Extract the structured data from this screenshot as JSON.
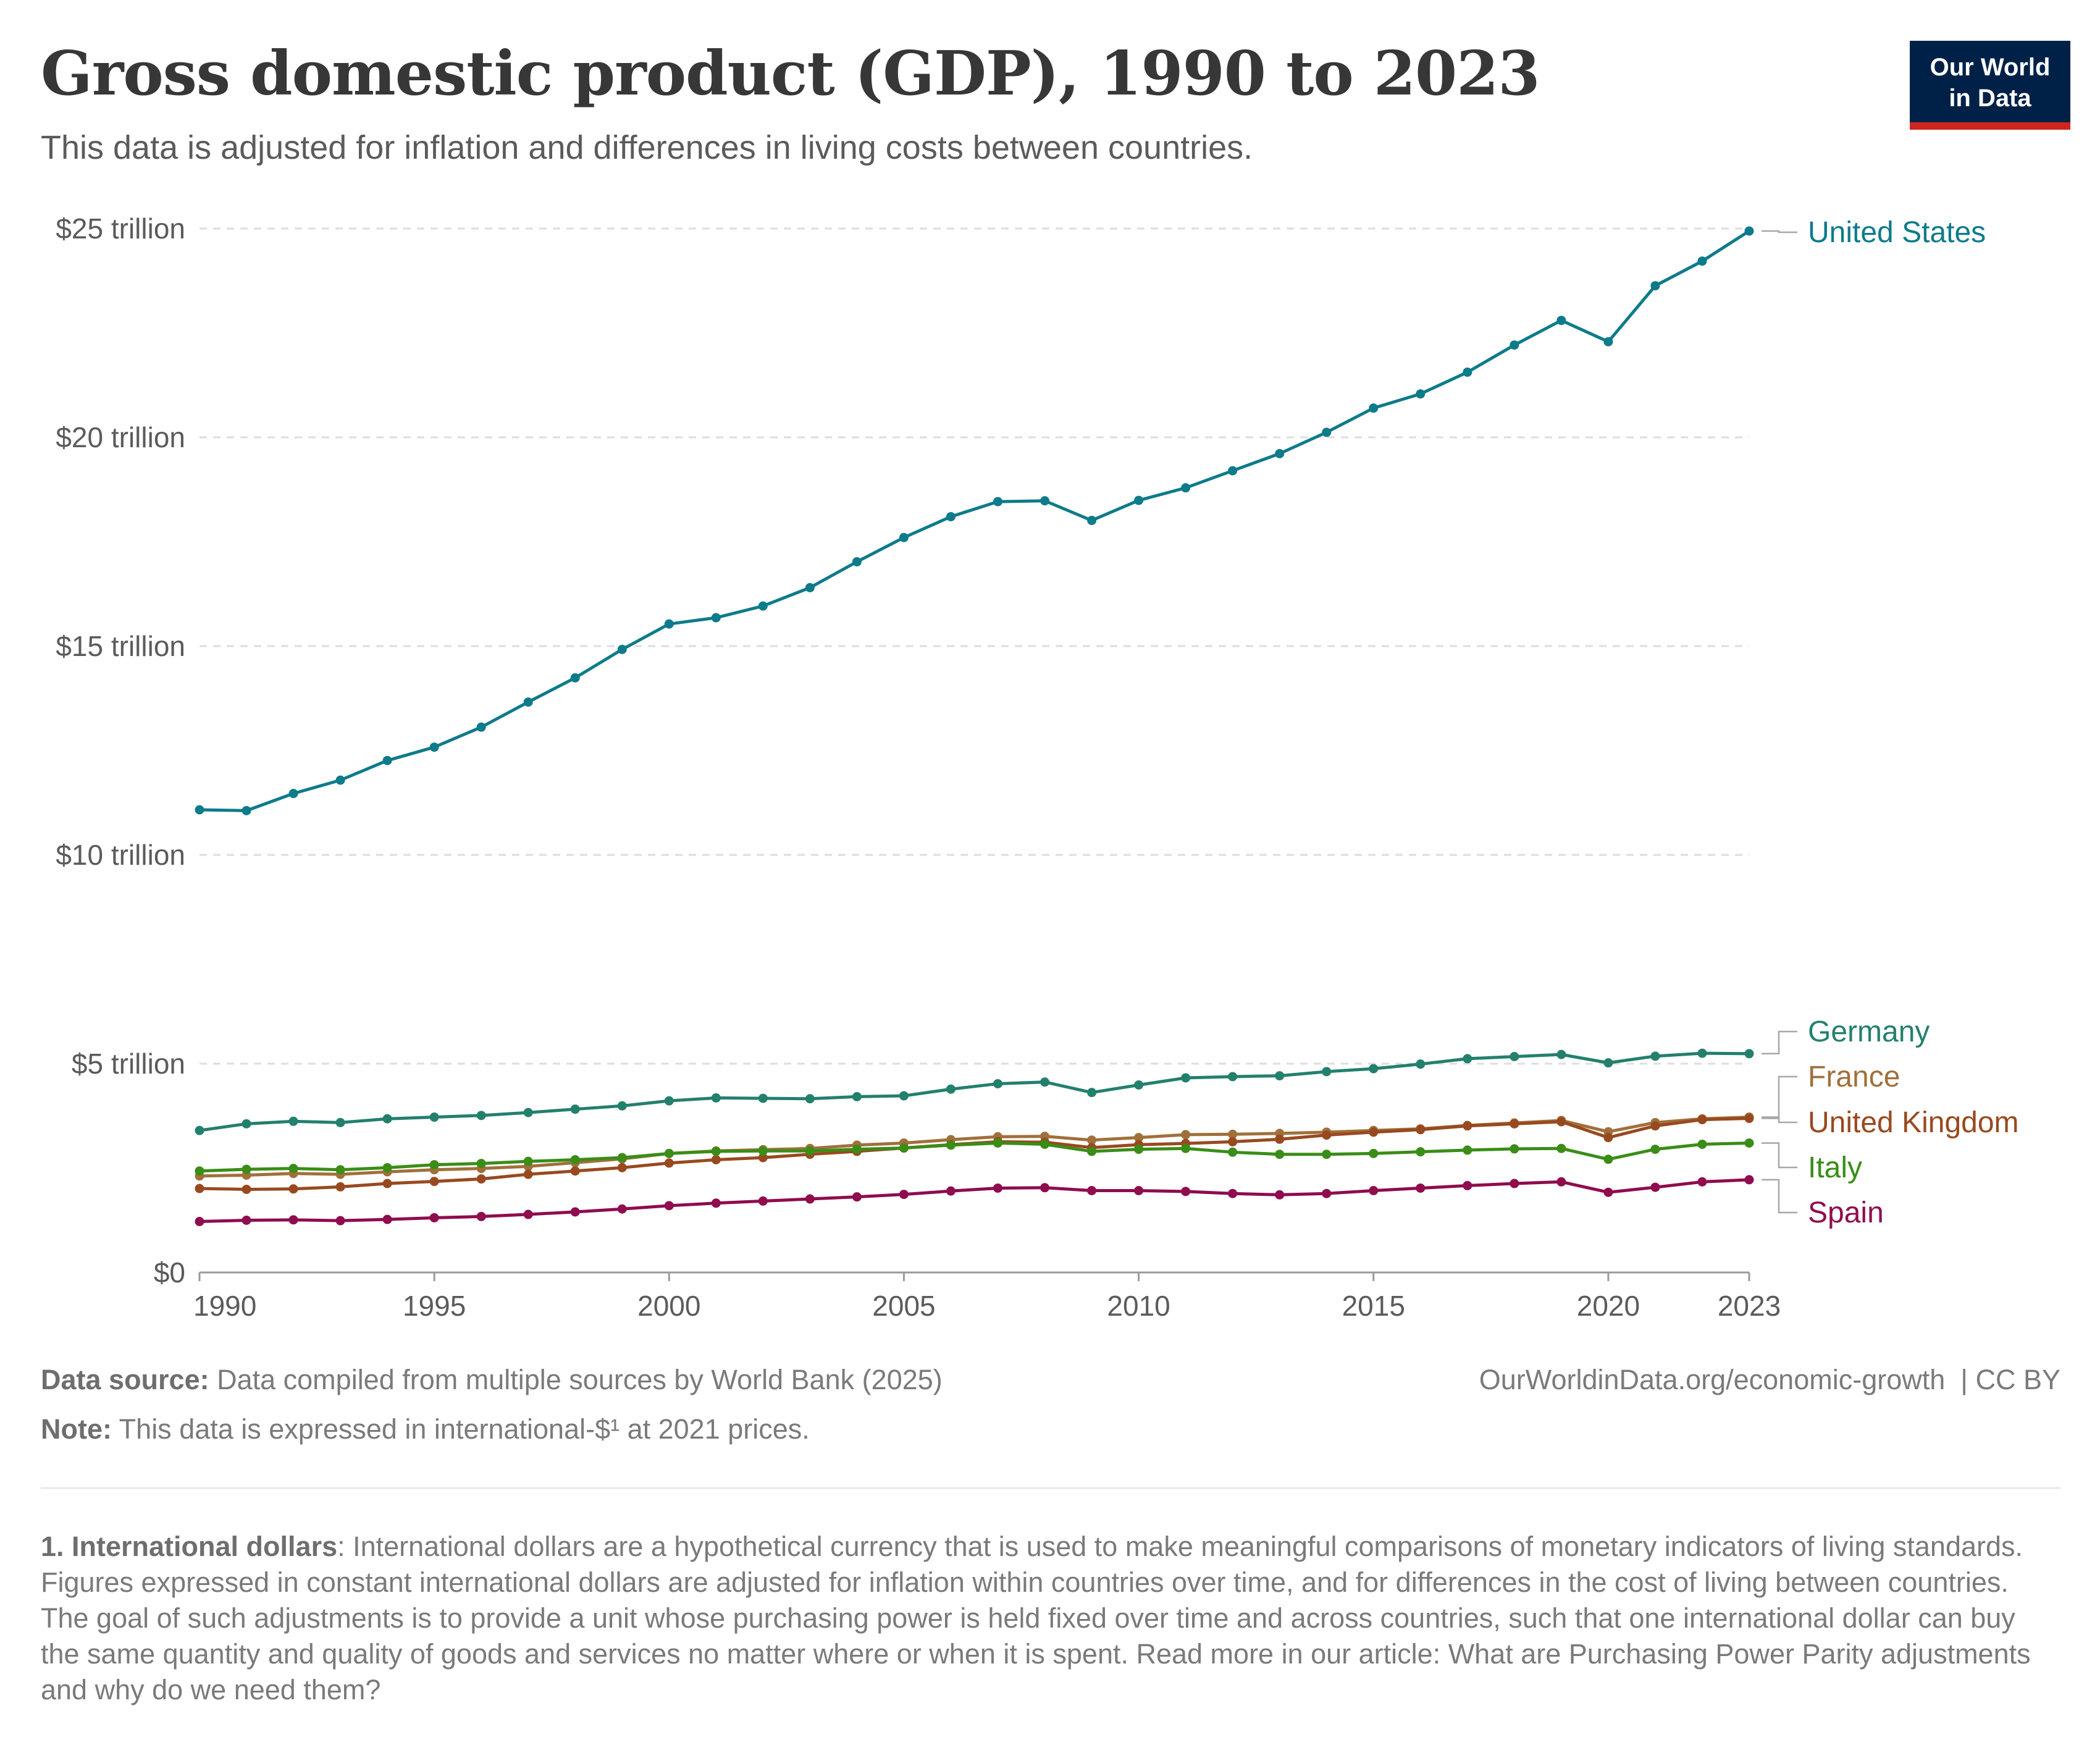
{
  "header": {
    "title": "Gross domestic product (GDP), 1990 to 2023",
    "subtitle": "This data is adjusted for inflation and differences in living costs between countries.",
    "logo_line1": "Our World",
    "logo_line2": "in Data"
  },
  "footer": {
    "source_label": "Data source:",
    "source_text": " Data compiled from multiple sources by World Bank (2025)",
    "url": "OurWorldinData.org/economic-growth",
    "license": "| CC BY",
    "note_label": "Note:",
    "note_text": " This data is expressed in international-$¹ at 2021 prices.",
    "footnote_label": "1. International dollars",
    "footnote_text": ": International dollars are a hypothetical currency that is used to make meaningful comparisons of monetary indicators of living standards. Figures expressed in constant international dollars are adjusted for inflation within countries over time, and for differences in the cost of living between countries. The goal of such adjustments is to provide a unit whose purchasing power is held fixed over time and across countries, such that one international dollar can buy the same quantity and quality of goods and services no matter where or when it is spent. Read more in our article: What are Purchasing Power Parity adjustments and why do we need them?"
  },
  "colors": {
    "united_states": "#0d7b8a",
    "germany": "#23806d",
    "france": "#a0703b",
    "united_kingdom": "#99491f",
    "italy": "#3a8d17",
    "spain": "#8f0c4e",
    "grid": "#dddddd",
    "axis": "#9a9a9a",
    "tick_label": "#5b5b5b"
  },
  "chart_data": {
    "type": "line",
    "title": "Gross domestic product (GDP), 1990 to 2023",
    "xlabel": "",
    "ylabel": "",
    "xlim": [
      1990,
      2023
    ],
    "ylim": [
      0,
      25
    ],
    "y_unit": "trillion international-$ (2021 prices)",
    "grid": "horizontal dashed",
    "legend": "right-end labels",
    "x_ticks": [
      {
        "value": 1990,
        "label": "1990"
      },
      {
        "value": 1995,
        "label": "1995"
      },
      {
        "value": 2000,
        "label": "2000"
      },
      {
        "value": 2005,
        "label": "2005"
      },
      {
        "value": 2010,
        "label": "2010"
      },
      {
        "value": 2015,
        "label": "2015"
      },
      {
        "value": 2020,
        "label": "2020"
      },
      {
        "value": 2023,
        "label": "2023"
      }
    ],
    "y_ticks": [
      {
        "value": 0,
        "label": "$0"
      },
      {
        "value": 5,
        "label": "$5 trillion"
      },
      {
        "value": 10,
        "label": "$10 trillion"
      },
      {
        "value": 15,
        "label": "$15 trillion"
      },
      {
        "value": 20,
        "label": "$20 trillion"
      },
      {
        "value": 25,
        "label": "$25 trillion"
      }
    ],
    "x": [
      1990,
      1991,
      1992,
      1993,
      1994,
      1995,
      1996,
      1997,
      1998,
      1999,
      2000,
      2001,
      2002,
      2003,
      2004,
      2005,
      2006,
      2007,
      2008,
      2009,
      2010,
      2011,
      2012,
      2013,
      2014,
      2015,
      2016,
      2017,
      2018,
      2019,
      2020,
      2021,
      2022,
      2023
    ],
    "series": [
      {
        "name": "United States",
        "color_key": "united_states",
        "values": [
          11.08,
          11.06,
          11.47,
          11.79,
          12.26,
          12.58,
          13.06,
          13.66,
          14.24,
          14.92,
          15.53,
          15.68,
          15.96,
          16.4,
          17.02,
          17.6,
          18.1,
          18.46,
          18.48,
          18.01,
          18.49,
          18.79,
          19.2,
          19.61,
          20.12,
          20.7,
          21.04,
          21.56,
          22.21,
          22.8,
          22.29,
          23.63,
          24.22,
          24.94
        ]
      },
      {
        "name": "Germany",
        "color_key": "germany",
        "values": [
          3.4,
          3.56,
          3.62,
          3.59,
          3.68,
          3.72,
          3.76,
          3.83,
          3.91,
          3.99,
          4.11,
          4.18,
          4.17,
          4.16,
          4.21,
          4.23,
          4.39,
          4.52,
          4.56,
          4.31,
          4.49,
          4.66,
          4.69,
          4.71,
          4.81,
          4.88,
          4.99,
          5.12,
          5.17,
          5.22,
          5.02,
          5.18,
          5.25,
          5.24
        ]
      },
      {
        "name": "France",
        "color_key": "france",
        "values": [
          2.31,
          2.33,
          2.37,
          2.35,
          2.41,
          2.46,
          2.49,
          2.54,
          2.63,
          2.72,
          2.85,
          2.91,
          2.94,
          2.97,
          3.05,
          3.1,
          3.18,
          3.25,
          3.26,
          3.17,
          3.23,
          3.3,
          3.31,
          3.33,
          3.36,
          3.4,
          3.44,
          3.52,
          3.58,
          3.64,
          3.37,
          3.59,
          3.68,
          3.72
        ]
      },
      {
        "name": "United Kingdom",
        "color_key": "united_kingdom",
        "values": [
          2.01,
          1.99,
          2.0,
          2.05,
          2.13,
          2.18,
          2.24,
          2.35,
          2.43,
          2.51,
          2.62,
          2.7,
          2.75,
          2.83,
          2.9,
          2.98,
          3.06,
          3.13,
          3.12,
          2.99,
          3.06,
          3.09,
          3.13,
          3.19,
          3.29,
          3.36,
          3.42,
          3.51,
          3.56,
          3.61,
          3.23,
          3.51,
          3.66,
          3.69
        ]
      },
      {
        "name": "Italy",
        "color_key": "italy",
        "values": [
          2.43,
          2.47,
          2.49,
          2.46,
          2.51,
          2.58,
          2.61,
          2.66,
          2.7,
          2.75,
          2.85,
          2.9,
          2.91,
          2.91,
          2.95,
          2.98,
          3.05,
          3.1,
          3.07,
          2.9,
          2.95,
          2.97,
          2.88,
          2.83,
          2.83,
          2.85,
          2.89,
          2.93,
          2.96,
          2.97,
          2.71,
          2.95,
          3.07,
          3.1
        ]
      },
      {
        "name": "Spain",
        "color_key": "spain",
        "values": [
          1.22,
          1.25,
          1.26,
          1.24,
          1.27,
          1.31,
          1.34,
          1.39,
          1.45,
          1.52,
          1.6,
          1.66,
          1.71,
          1.76,
          1.81,
          1.87,
          1.95,
          2.02,
          2.03,
          1.96,
          1.96,
          1.94,
          1.89,
          1.86,
          1.89,
          1.96,
          2.02,
          2.08,
          2.13,
          2.17,
          1.92,
          2.04,
          2.17,
          2.22
        ]
      }
    ]
  }
}
